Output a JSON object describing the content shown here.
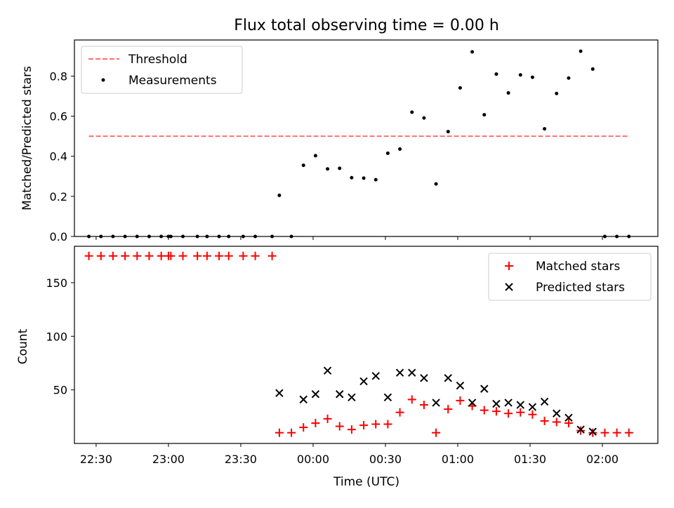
{
  "figure": {
    "title": "Flux total observing time = 0.00 h",
    "xlabel": "Time (UTC)"
  },
  "colors": {
    "threshold": "#ff7070",
    "measurements": "#000000",
    "matched": "#ff0000",
    "predicted": "#000000"
  },
  "chart_data": [
    {
      "type": "scatter",
      "ylabel": "Matched/Predicted stars",
      "xlim": [
        "22:21",
        "02:23"
      ],
      "ylim": [
        0,
        0.98
      ],
      "y_ticks": [
        0.0,
        0.2,
        0.4,
        0.6,
        0.8
      ],
      "y_tick_labels": [
        "0.0",
        "0.2",
        "0.4",
        "0.6",
        "0.8"
      ],
      "legend": {
        "placement": "top-left",
        "entries": [
          "Threshold",
          "Measurements"
        ]
      },
      "threshold": {
        "name": "Threshold",
        "value": 0.5,
        "x_start": "22:27",
        "x_end": "02:11",
        "style": "dashed"
      },
      "series": [
        {
          "name": "Measurements",
          "marker": "dot",
          "points": [
            [
              "22:27",
              0.0
            ],
            [
              "22:32",
              0.0
            ],
            [
              "22:37",
              0.0
            ],
            [
              "22:42",
              0.0
            ],
            [
              "22:47",
              0.0
            ],
            [
              "22:52",
              0.0
            ],
            [
              "22:57",
              0.0
            ],
            [
              "23:00",
              0.0
            ],
            [
              "23:01",
              0.0
            ],
            [
              "23:06",
              0.0
            ],
            [
              "23:12",
              0.0
            ],
            [
              "23:16",
              0.0
            ],
            [
              "23:21",
              0.0
            ],
            [
              "23:25",
              0.0
            ],
            [
              "23:31",
              0.0
            ],
            [
              "23:36",
              0.0
            ],
            [
              "23:43",
              0.0
            ],
            [
              "23:46",
              0.205
            ],
            [
              "23:51",
              0.0
            ],
            [
              "23:56",
              0.355
            ],
            [
              "00:01",
              0.403
            ],
            [
              "00:06",
              0.337
            ],
            [
              "00:11",
              0.34
            ],
            [
              "00:16",
              0.293
            ],
            [
              "00:21",
              0.291
            ],
            [
              "00:26",
              0.283
            ],
            [
              "00:31",
              0.415
            ],
            [
              "00:36",
              0.436
            ],
            [
              "00:41",
              0.62
            ],
            [
              "00:46",
              0.591
            ],
            [
              "00:51",
              0.262
            ],
            [
              "00:56",
              0.523
            ],
            [
              "01:01",
              0.741
            ],
            [
              "01:06",
              0.921
            ],
            [
              "01:11",
              0.607
            ],
            [
              "01:16",
              0.81
            ],
            [
              "01:21",
              0.716
            ],
            [
              "01:26",
              0.806
            ],
            [
              "01:31",
              0.794
            ],
            [
              "01:36",
              0.537
            ],
            [
              "01:41",
              0.713
            ],
            [
              "01:46",
              0.79
            ],
            [
              "01:51",
              0.924
            ],
            [
              "01:56",
              0.835
            ],
            [
              "02:01",
              0.0
            ],
            [
              "02:06",
              0.0
            ],
            [
              "02:11",
              0.0
            ]
          ]
        }
      ]
    },
    {
      "type": "scatter",
      "ylabel": "Count",
      "xlim": [
        "22:21",
        "02:23"
      ],
      "ylim": [
        0,
        184
      ],
      "y_ticks": [
        50,
        100,
        150
      ],
      "y_tick_labels": [
        "50",
        "100",
        "150"
      ],
      "x_ticks": [
        "22:30",
        "23:00",
        "23:30",
        "00:00",
        "00:30",
        "01:00",
        "01:30",
        "02:00"
      ],
      "x_tick_labels": [
        "22:30",
        "23:00",
        "23:30",
        "00:00",
        "00:30",
        "01:00",
        "01:30",
        "02:00"
      ],
      "legend": {
        "placement": "top-right",
        "entries": [
          "Matched stars",
          "Predicted stars"
        ]
      },
      "series": [
        {
          "name": "Matched stars",
          "marker": "plus",
          "points": [
            [
              "22:27",
              175
            ],
            [
              "22:32",
              175
            ],
            [
              "22:37",
              175
            ],
            [
              "22:42",
              175
            ],
            [
              "22:47",
              175
            ],
            [
              "22:52",
              175
            ],
            [
              "22:57",
              175
            ],
            [
              "23:00",
              175
            ],
            [
              "23:01",
              175
            ],
            [
              "23:06",
              175
            ],
            [
              "23:12",
              175
            ],
            [
              "23:16",
              175
            ],
            [
              "23:21",
              175
            ],
            [
              "23:25",
              175
            ],
            [
              "23:31",
              175
            ],
            [
              "23:36",
              175
            ],
            [
              "23:43",
              175
            ],
            [
              "23:46",
              10
            ],
            [
              "23:51",
              10
            ],
            [
              "23:56",
              15
            ],
            [
              "00:01",
              19
            ],
            [
              "00:06",
              23
            ],
            [
              "00:11",
              16
            ],
            [
              "00:16",
              13
            ],
            [
              "00:21",
              17
            ],
            [
              "00:26",
              18
            ],
            [
              "00:31",
              18
            ],
            [
              "00:36",
              29
            ],
            [
              "00:41",
              41
            ],
            [
              "00:46",
              36
            ],
            [
              "00:51",
              10
            ],
            [
              "00:56",
              32
            ],
            [
              "01:01",
              40
            ],
            [
              "01:06",
              35
            ],
            [
              "01:11",
              31
            ],
            [
              "01:16",
              30
            ],
            [
              "01:21",
              28
            ],
            [
              "01:26",
              29
            ],
            [
              "01:31",
              27
            ],
            [
              "01:36",
              21
            ],
            [
              "01:41",
              20
            ],
            [
              "01:46",
              19
            ],
            [
              "01:51",
              12
            ],
            [
              "01:56",
              10
            ],
            [
              "02:01",
              10
            ],
            [
              "02:06",
              10
            ],
            [
              "02:11",
              10
            ]
          ]
        },
        {
          "name": "Predicted stars",
          "marker": "x",
          "points": [
            [
              "23:46",
              47
            ],
            [
              "23:56",
              41
            ],
            [
              "00:01",
              46
            ],
            [
              "00:06",
              68
            ],
            [
              "00:11",
              46
            ],
            [
              "00:16",
              43
            ],
            [
              "00:21",
              58
            ],
            [
              "00:26",
              63
            ],
            [
              "00:31",
              43
            ],
            [
              "00:36",
              66
            ],
            [
              "00:41",
              66
            ],
            [
              "00:46",
              61
            ],
            [
              "00:51",
              38
            ],
            [
              "00:56",
              61
            ],
            [
              "01:01",
              54
            ],
            [
              "01:06",
              38
            ],
            [
              "01:11",
              51
            ],
            [
              "01:16",
              37
            ],
            [
              "01:21",
              38
            ],
            [
              "01:26",
              36
            ],
            [
              "01:31",
              34
            ],
            [
              "01:36",
              39
            ],
            [
              "01:41",
              28
            ],
            [
              "01:46",
              24
            ],
            [
              "01:51",
              13
            ],
            [
              "01:56",
              11
            ]
          ]
        }
      ]
    }
  ]
}
